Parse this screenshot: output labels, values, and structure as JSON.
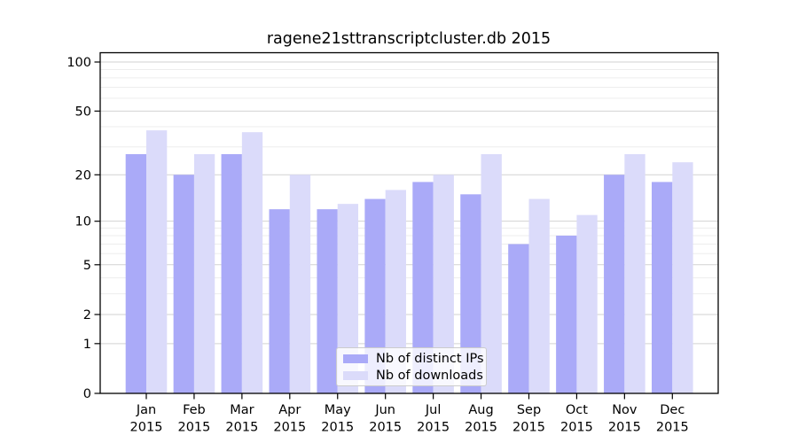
{
  "title": "ragene21sttranscriptcluster.db 2015",
  "colors": {
    "distinct_ips_bar": "#aaaaf8",
    "downloads_bar": "#dbdbfa",
    "major_gridline": "#d2d2d2",
    "minor_gridline": "#ededed",
    "axis_frame": "#000000",
    "text": "#000000"
  },
  "legend": {
    "items": [
      {
        "label": "Nb of distinct IPs",
        "color": "#aaaaf8"
      },
      {
        "label": "Nb of downloads",
        "color": "#dbdbfa"
      }
    ]
  },
  "y_axis": {
    "tick_labels": [
      "100",
      "50",
      "20",
      "10",
      "5",
      "2",
      "1",
      "0"
    ],
    "major_ticks": [
      100,
      50,
      20,
      10,
      5,
      2,
      1,
      0
    ],
    "minor_gridlines": [
      3,
      4,
      6,
      7,
      8,
      9,
      30,
      40,
      60,
      70,
      80,
      90
    ]
  },
  "x_axis": {
    "year_label": "2015"
  },
  "chart_data": {
    "type": "bar",
    "title": "ragene21sttranscriptcluster.db 2015",
    "categories": [
      "Jan",
      "Feb",
      "Mar",
      "Apr",
      "May",
      "Jun",
      "Jul",
      "Aug",
      "Sep",
      "Oct",
      "Nov",
      "Dec"
    ],
    "category_year": "2015",
    "series": [
      {
        "name": "Nb of distinct IPs",
        "color": "#aaaaf8",
        "values": [
          27,
          20,
          27,
          12,
          12,
          14,
          18,
          15,
          7,
          8,
          20,
          18
        ]
      },
      {
        "name": "Nb of downloads",
        "color": "#dbdbfa",
        "values": [
          38,
          27,
          37,
          20,
          13,
          16,
          20,
          27,
          14,
          11,
          27,
          24
        ]
      }
    ],
    "xlabel": "",
    "ylabel": "",
    "ylim": [
      0,
      100
    ],
    "y_scale": "log1p",
    "grid": true,
    "legend_position": "bottom-center"
  }
}
